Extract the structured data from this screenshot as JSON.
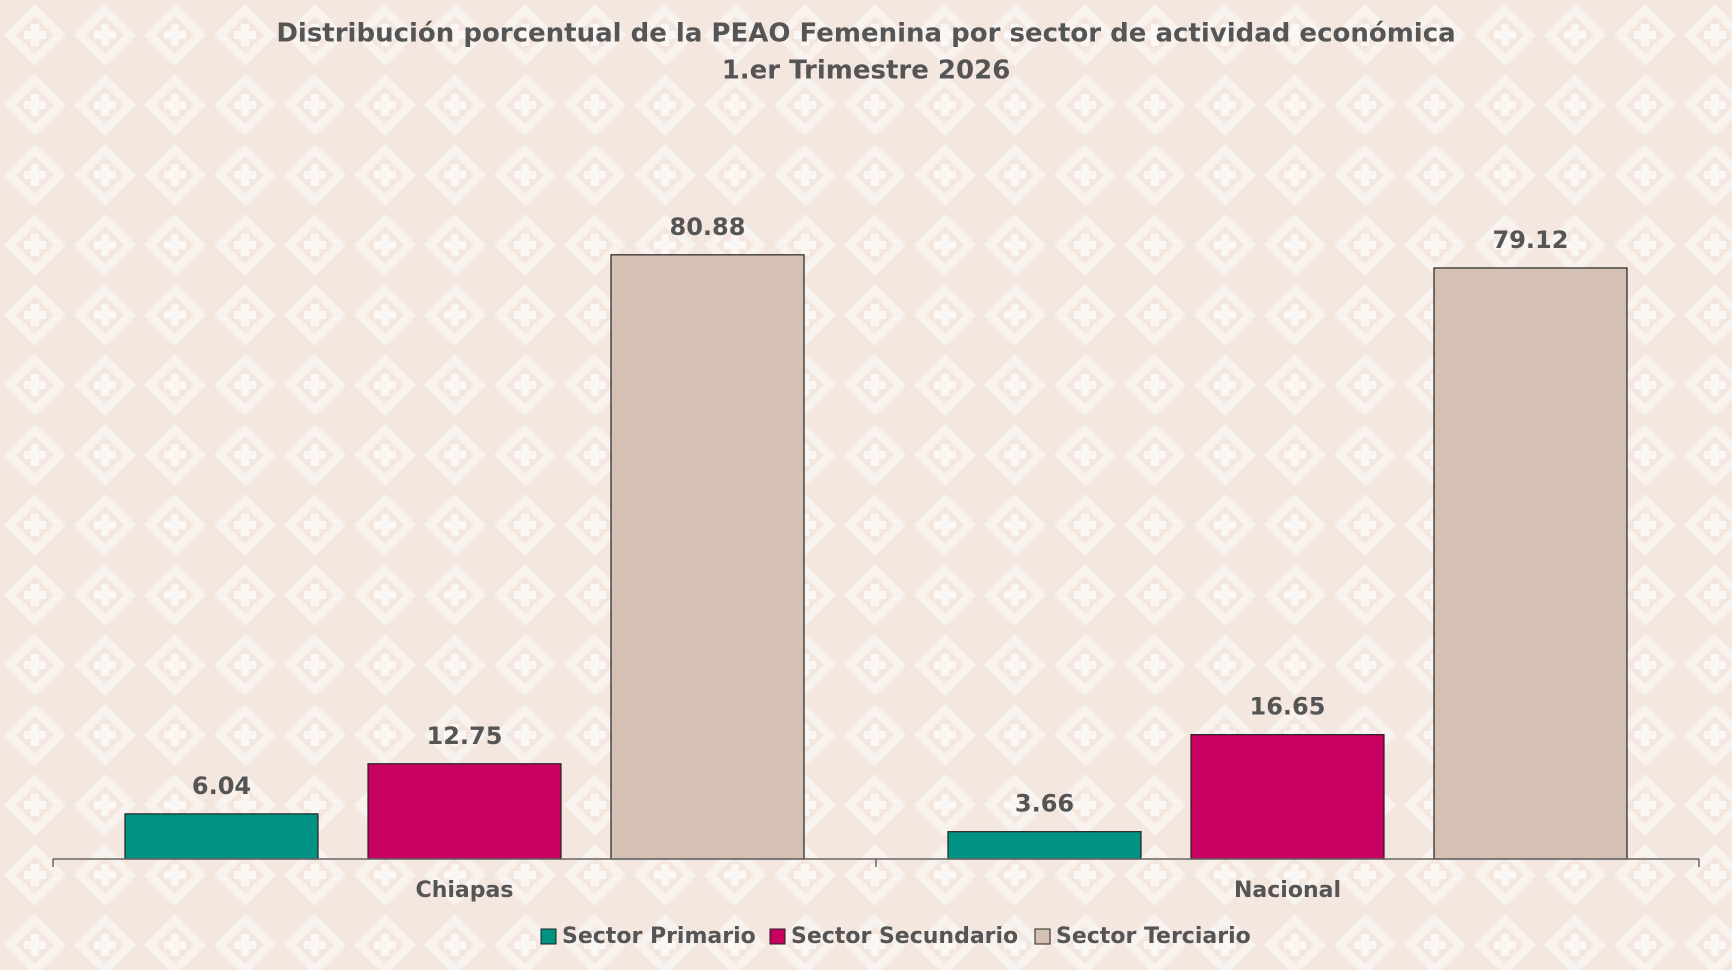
{
  "chart_data": {
    "type": "bar",
    "title": "Distribución porcentual de la PEAO Femenina por sector de actividad económica",
    "subtitle": "1.er Trimestre 2026",
    "categories": [
      "Chiapas",
      "Nacional"
    ],
    "series": [
      {
        "name": "Sector Primario",
        "color": "#009383",
        "values": [
          6.04,
          3.66
        ]
      },
      {
        "name": "Sector Secundario",
        "color": "#c8005f",
        "values": [
          12.75,
          16.65
        ]
      },
      {
        "name": "Sector Terciario",
        "color": "#d4c1b4",
        "values": [
          80.88,
          79.12
        ]
      }
    ],
    "ylim": [
      0,
      100
    ]
  }
}
